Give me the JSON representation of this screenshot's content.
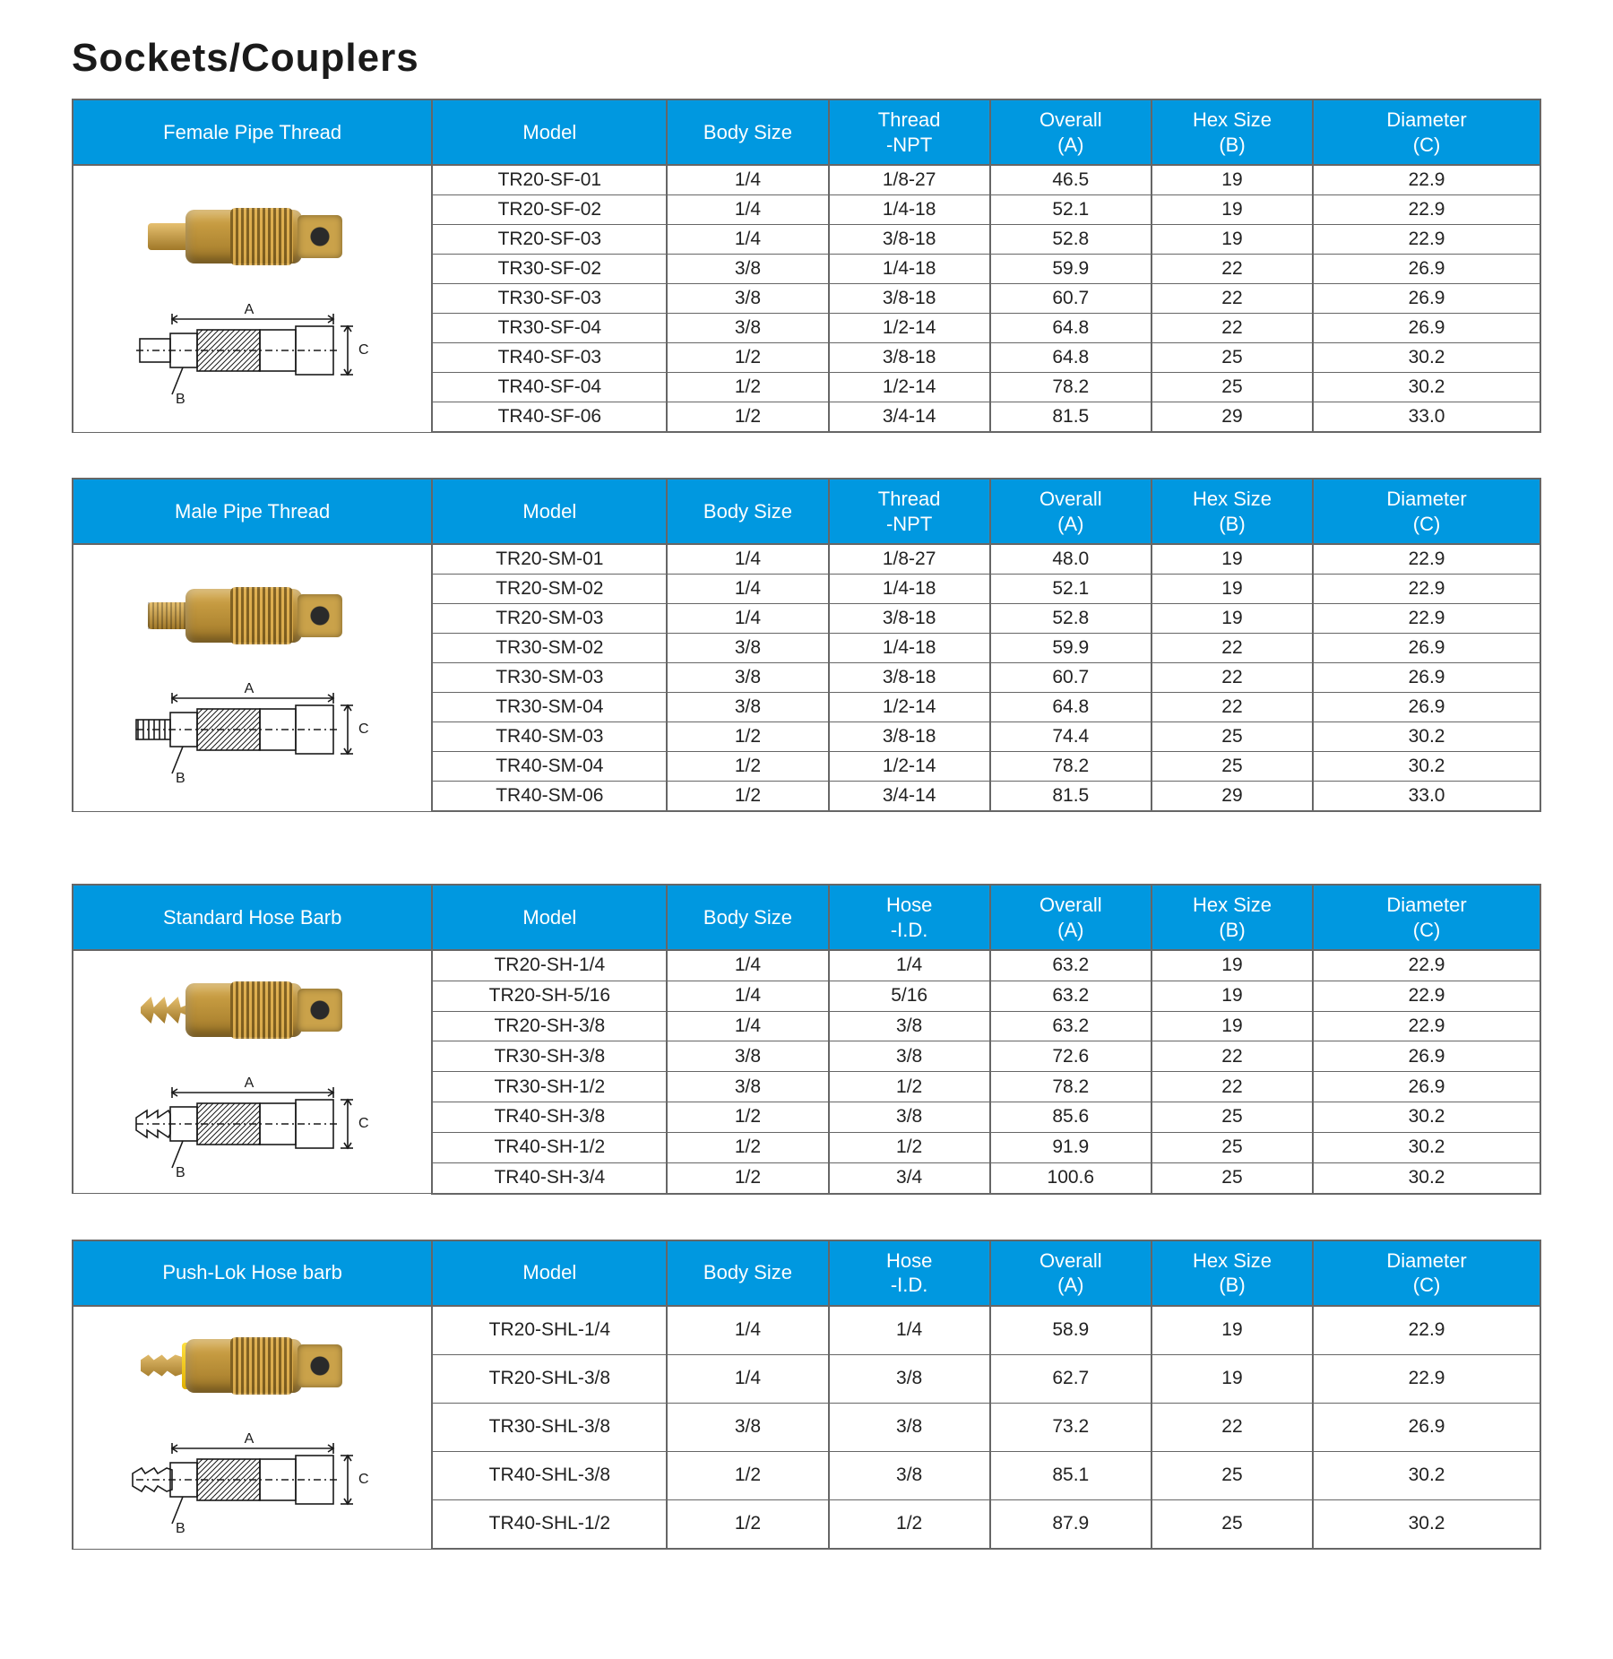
{
  "page": {
    "title": "Sockets/Couplers"
  },
  "colors": {
    "header_blue": "#0098e0",
    "border": "#666666",
    "text": "#222222",
    "title": "#1a1a1a",
    "background": "#ffffff",
    "brass_light": "#d4a84a",
    "brass_dark": "#a07828",
    "schematic": "#1a1a1a"
  },
  "common_headers": {
    "model": "Model",
    "body_size": "Body Size",
    "overall": "Overall\n(A)",
    "hex_size": "Hex Size\n(B)",
    "diameter": "Diameter\n(C)"
  },
  "sections": [
    {
      "title": "Female Pipe Thread",
      "third_header": "Thread\n-NPT",
      "image_variant": "female",
      "tall": false,
      "rows": [
        {
          "model": "TR20-SF-01",
          "body": "1/4",
          "thread": "1/8-27",
          "a": "46.5",
          "b": "19",
          "c": "22.9"
        },
        {
          "model": "TR20-SF-02",
          "body": "1/4",
          "thread": "1/4-18",
          "a": "52.1",
          "b": "19",
          "c": "22.9"
        },
        {
          "model": "TR20-SF-03",
          "body": "1/4",
          "thread": "3/8-18",
          "a": "52.8",
          "b": "19",
          "c": "22.9"
        },
        {
          "model": "TR30-SF-02",
          "body": "3/8",
          "thread": "1/4-18",
          "a": "59.9",
          "b": "22",
          "c": "26.9"
        },
        {
          "model": "TR30-SF-03",
          "body": "3/8",
          "thread": "3/8-18",
          "a": "60.7",
          "b": "22",
          "c": "26.9"
        },
        {
          "model": "TR30-SF-04",
          "body": "3/8",
          "thread": "1/2-14",
          "a": "64.8",
          "b": "22",
          "c": "26.9"
        },
        {
          "model": "TR40-SF-03",
          "body": "1/2",
          "thread": "3/8-18",
          "a": "64.8",
          "b": "25",
          "c": "30.2"
        },
        {
          "model": "TR40-SF-04",
          "body": "1/2",
          "thread": "1/2-14",
          "a": "78.2",
          "b": "25",
          "c": "30.2"
        },
        {
          "model": "TR40-SF-06",
          "body": "1/2",
          "thread": "3/4-14",
          "a": "81.5",
          "b": "29",
          "c": "33.0"
        }
      ]
    },
    {
      "title": "Male Pipe Thread",
      "third_header": "Thread\n-NPT",
      "image_variant": "male",
      "tall": false,
      "rows": [
        {
          "model": "TR20-SM-01",
          "body": "1/4",
          "thread": "1/8-27",
          "a": "48.0",
          "b": "19",
          "c": "22.9"
        },
        {
          "model": "TR20-SM-02",
          "body": "1/4",
          "thread": "1/4-18",
          "a": "52.1",
          "b": "19",
          "c": "22.9"
        },
        {
          "model": "TR20-SM-03",
          "body": "1/4",
          "thread": "3/8-18",
          "a": "52.8",
          "b": "19",
          "c": "22.9"
        },
        {
          "model": "TR30-SM-02",
          "body": "3/8",
          "thread": "1/4-18",
          "a": "59.9",
          "b": "22",
          "c": "26.9"
        },
        {
          "model": "TR30-SM-03",
          "body": "3/8",
          "thread": "3/8-18",
          "a": "60.7",
          "b": "22",
          "c": "26.9"
        },
        {
          "model": "TR30-SM-04",
          "body": "3/8",
          "thread": "1/2-14",
          "a": "64.8",
          "b": "22",
          "c": "26.9"
        },
        {
          "model": "TR40-SM-03",
          "body": "1/2",
          "thread": "3/8-18",
          "a": "74.4",
          "b": "25",
          "c": "30.2"
        },
        {
          "model": "TR40-SM-04",
          "body": "1/2",
          "thread": "1/2-14",
          "a": "78.2",
          "b": "25",
          "c": "30.2"
        },
        {
          "model": "TR40-SM-06",
          "body": "1/2",
          "thread": "3/4-14",
          "a": "81.5",
          "b": "29",
          "c": "33.0"
        }
      ]
    },
    {
      "title": "Standard Hose Barb",
      "third_header": "Hose\n-I.D.",
      "image_variant": "barb",
      "tall": false,
      "rows": [
        {
          "model": "TR20-SH-1/4",
          "body": "1/4",
          "thread": "1/4",
          "a": "63.2",
          "b": "19",
          "c": "22.9"
        },
        {
          "model": "TR20-SH-5/16",
          "body": "1/4",
          "thread": "5/16",
          "a": "63.2",
          "b": "19",
          "c": "22.9"
        },
        {
          "model": "TR20-SH-3/8",
          "body": "1/4",
          "thread": "3/8",
          "a": "63.2",
          "b": "19",
          "c": "22.9"
        },
        {
          "model": "TR30-SH-3/8",
          "body": "3/8",
          "thread": "3/8",
          "a": "72.6",
          "b": "22",
          "c": "26.9"
        },
        {
          "model": "TR30-SH-1/2",
          "body": "3/8",
          "thread": "1/2",
          "a": "78.2",
          "b": "22",
          "c": "26.9"
        },
        {
          "model": "TR40-SH-3/8",
          "body": "1/2",
          "thread": "3/8",
          "a": "85.6",
          "b": "25",
          "c": "30.2"
        },
        {
          "model": "TR40-SH-1/2",
          "body": "1/2",
          "thread": "1/2",
          "a": "91.9",
          "b": "25",
          "c": "30.2"
        },
        {
          "model": "TR40-SH-3/4",
          "body": "1/2",
          "thread": "3/4",
          "a": "100.6",
          "b": "25",
          "c": "30.2"
        }
      ]
    },
    {
      "title": "Push-Lok Hose barb",
      "third_header": "Hose\n-I.D.",
      "image_variant": "pushlok",
      "tall": true,
      "rows": [
        {
          "model": "TR20-SHL-1/4",
          "body": "1/4",
          "thread": "1/4",
          "a": "58.9",
          "b": "19",
          "c": "22.9"
        },
        {
          "model": "TR20-SHL-3/8",
          "body": "1/4",
          "thread": "3/8",
          "a": "62.7",
          "b": "19",
          "c": "22.9"
        },
        {
          "model": "TR30-SHL-3/8",
          "body": "3/8",
          "thread": "3/8",
          "a": "73.2",
          "b": "22",
          "c": "26.9"
        },
        {
          "model": "TR40-SHL-3/8",
          "body": "1/2",
          "thread": "3/8",
          "a": "85.1",
          "b": "25",
          "c": "30.2"
        },
        {
          "model": "TR40-SHL-1/2",
          "body": "1/2",
          "thread": "1/2",
          "a": "87.9",
          "b": "25",
          "c": "30.2"
        }
      ]
    }
  ],
  "schematic_labels": {
    "a": "A",
    "b": "B",
    "c": "C"
  }
}
